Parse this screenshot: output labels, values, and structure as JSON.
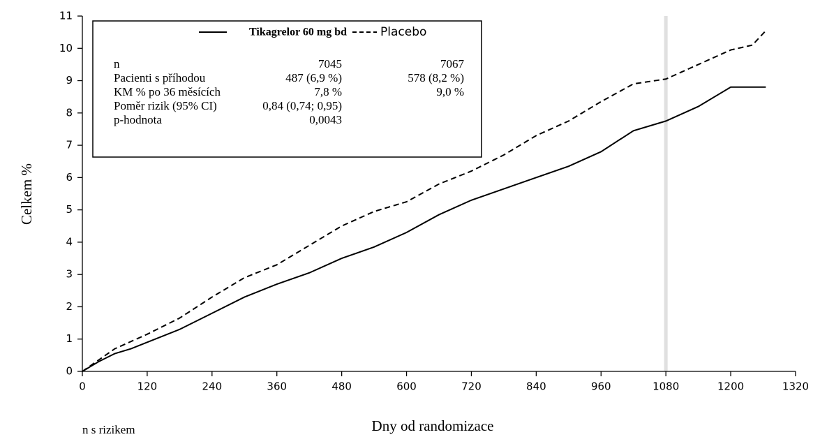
{
  "chart_data": {
    "type": "line",
    "x_label": "Dny od randomizace",
    "y_label": "Celkem %",
    "footnote": "n s rizikem",
    "xlim": [
      0,
      1320
    ],
    "xticks": [
      0,
      120,
      240,
      360,
      480,
      600,
      720,
      840,
      960,
      1080,
      1200,
      1320
    ],
    "ylim": [
      0,
      11
    ],
    "yticks": [
      0,
      1,
      2,
      3,
      4,
      5,
      6,
      7,
      8,
      9,
      10,
      11
    ],
    "reference_line_x": 1080,
    "series": [
      {
        "name": "Tikagrelor 60 mg bd",
        "color": "#000000",
        "line_style": "solid",
        "x": [
          0,
          30,
          60,
          90,
          120,
          180,
          240,
          300,
          360,
          420,
          480,
          540,
          600,
          660,
          720,
          780,
          840,
          900,
          960,
          1020,
          1080,
          1140,
          1200,
          1265
        ],
        "values": [
          0,
          0.3,
          0.55,
          0.7,
          0.9,
          1.3,
          1.8,
          2.3,
          2.7,
          3.05,
          3.5,
          3.85,
          4.3,
          4.85,
          5.3,
          5.65,
          6.0,
          6.35,
          6.8,
          7.45,
          7.75,
          8.2,
          8.8,
          8.8
        ]
      },
      {
        "name": "Placebo",
        "color": "#000000",
        "line_style": "dashed",
        "x": [
          0,
          30,
          60,
          120,
          180,
          240,
          300,
          360,
          420,
          480,
          540,
          600,
          660,
          720,
          780,
          840,
          900,
          960,
          1020,
          1080,
          1140,
          1200,
          1240,
          1265
        ],
        "values": [
          0,
          0.35,
          0.7,
          1.15,
          1.65,
          2.3,
          2.9,
          3.3,
          3.9,
          4.5,
          4.95,
          5.25,
          5.8,
          6.2,
          6.7,
          7.3,
          7.75,
          8.35,
          8.9,
          9.05,
          9.5,
          9.95,
          10.1,
          10.55
        ]
      }
    ],
    "table": [
      [
        "n",
        "7045",
        "7067"
      ],
      [
        "Pacienti s příhodou",
        "487 (6,9 %)",
        "578 (8,2 %)"
      ],
      [
        "KM % po 36 měsících",
        "7,8 %",
        "9,0 %"
      ],
      [
        "Poměr rizik (95% CI)",
        "0,84 (0,74; 0,95)"
      ],
      [
        "p-hodnota",
        "0,0043"
      ]
    ]
  }
}
